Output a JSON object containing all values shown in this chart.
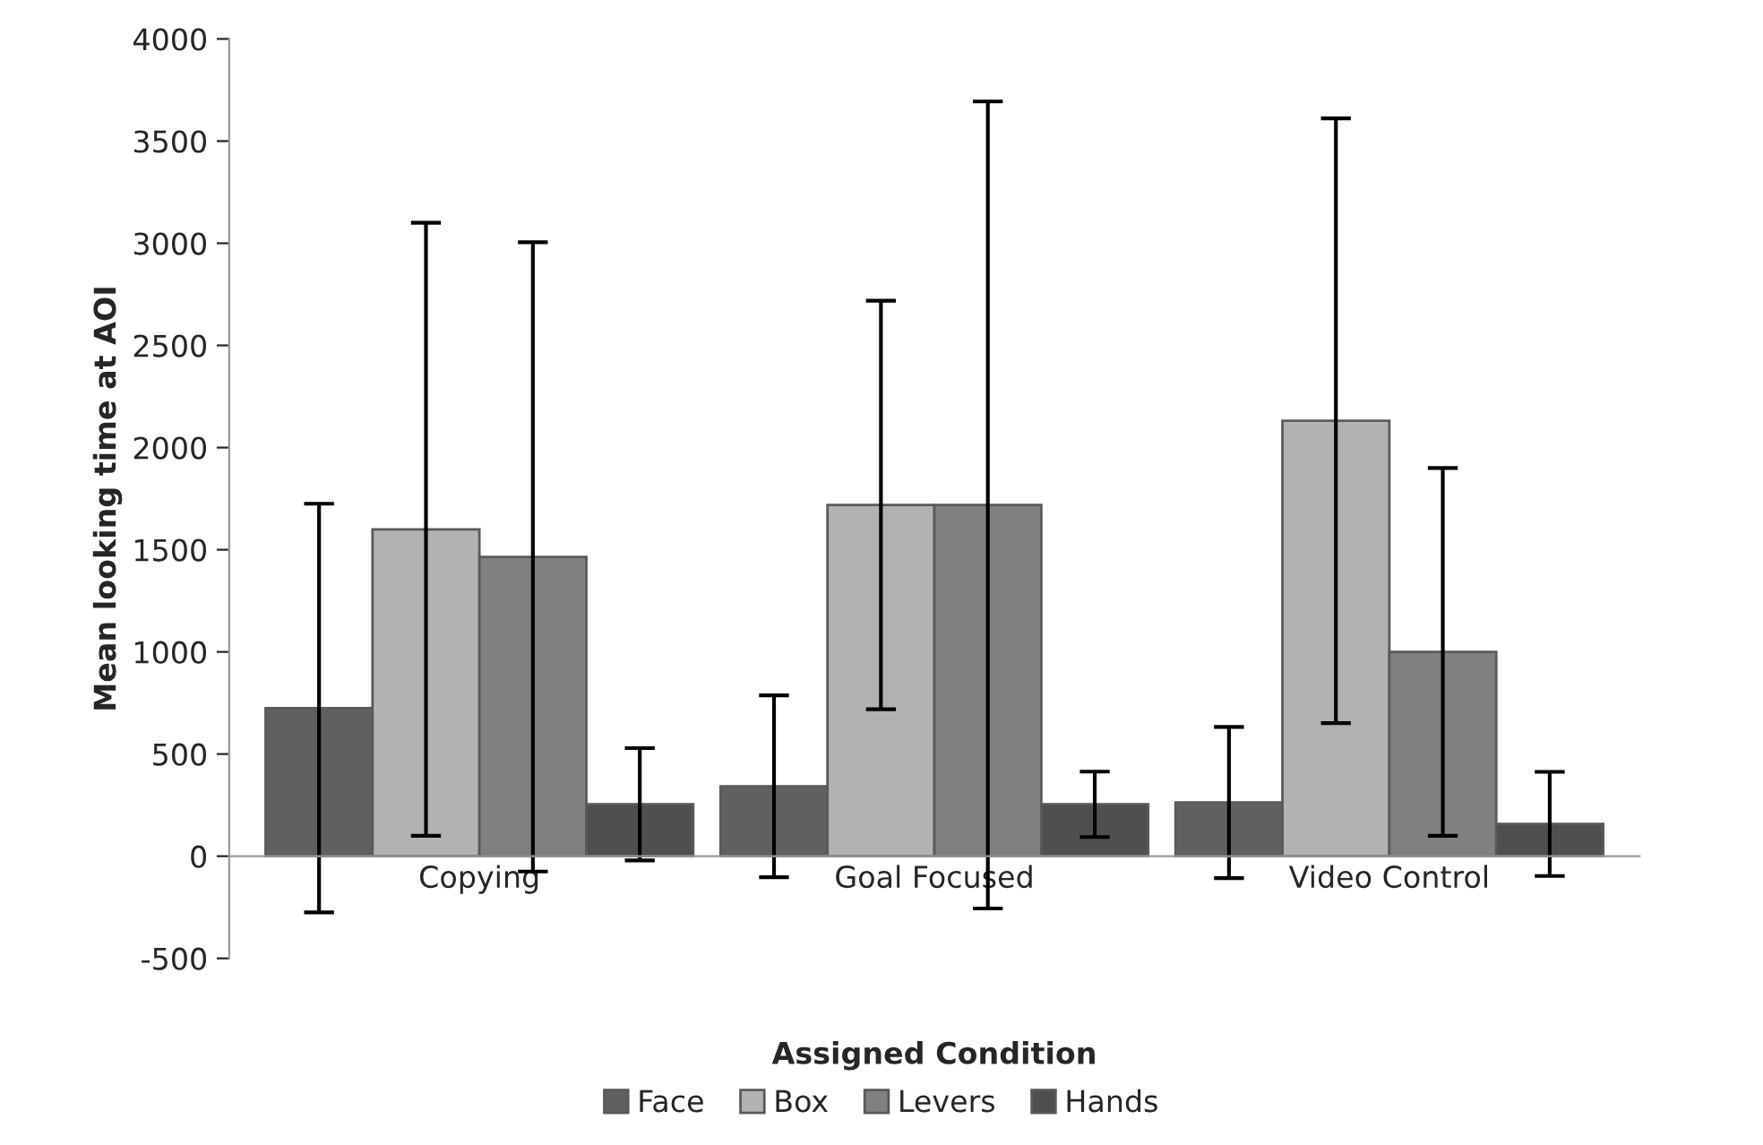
{
  "chart_data": {
    "type": "bar",
    "xlabel": "Assigned Condition",
    "ylabel": "Mean looking time at AOI",
    "categories": [
      "Copying",
      "Goal Focused",
      "Video Control"
    ],
    "series": [
      {
        "name": "Face",
        "color": "#606060",
        "values": [
          725,
          342,
          263
        ],
        "errors": [
          1000,
          445,
          370
        ]
      },
      {
        "name": "Box",
        "color": "#b2b2b2",
        "values": [
          1600,
          1719,
          2131
        ],
        "errors": [
          1500,
          1000,
          1480
        ]
      },
      {
        "name": "Levers",
        "color": "#808080",
        "values": [
          1465,
          1719,
          1000
        ],
        "errors": [
          1540,
          1975,
          900
        ]
      },
      {
        "name": "Hands",
        "color": "#4f4f4f",
        "values": [
          254,
          254,
          158
        ],
        "errors": [
          275,
          160,
          255
        ]
      }
    ],
    "ylim": [
      -500,
      4000
    ],
    "yticks": [
      -500,
      0,
      500,
      1000,
      1500,
      2000,
      2500,
      3000,
      3500,
      4000
    ],
    "grid": false,
    "legend": "bottom"
  }
}
